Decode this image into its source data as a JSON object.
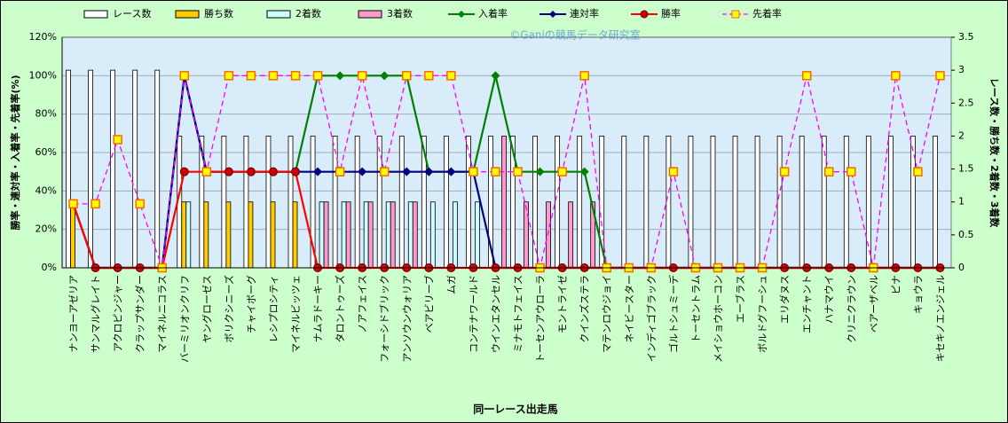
{
  "chart_data": {
    "type": "combo",
    "watermark": "©Ganiの競馬データ研究室",
    "x_label": "同一レース出走馬",
    "y_label": "勝率・連対率・入着率・先着率(%)",
    "y2_label": "レース数・勝ち数・2着数・3着数",
    "legend": "top",
    "grid": true,
    "categories": [
      "ナンヨーアゼリア",
      "サンマルグレイト",
      "アクロピンジャー",
      "クラップサンダー",
      "マイネルニコラス",
      "バーミリオンクリフ",
      "ヤングローゼス",
      "ボリクシニーズ",
      "チャイボーグ",
      "レシプロシティ",
      "マイネルビッツェ",
      "ナムラドーキー",
      "タロントゥーズ",
      "ノアフェイス",
      "フォーシドブリック",
      "アンソウンウォリア",
      "ベアビリーブ",
      "ムガ",
      "コンテナワールド",
      "ウインエタンセル",
      "ミナモトフェイス",
      "トーセンアウローラ",
      "モントライゼ",
      "クインズステラ",
      "マテンロウジョイ",
      "ネイビースター",
      "インディゴブラック",
      "ゴルトシュミーデ",
      "トーセントラム",
      "メイショウホーコン",
      "エーブラス",
      "ボルドグフーシュ",
      "エリダヌス",
      "エンチャント",
      "ハナマウイ",
      "クリニクラウン",
      "ベアーザベル",
      "ピナ",
      "キョウラ",
      "キセキノエンジェル"
    ],
    "ylim": [
      0,
      120
    ],
    "yticks": [
      {
        "value": 0,
        "label": "0%"
      },
      {
        "value": 20,
        "label": "20%"
      },
      {
        "value": 40,
        "label": "40%"
      },
      {
        "value": 60,
        "label": "60%"
      },
      {
        "value": 80,
        "label": "80%"
      },
      {
        "value": 100,
        "label": "100%"
      },
      {
        "value": 120,
        "label": "120%"
      }
    ],
    "y2lim": [
      0,
      3.5
    ],
    "y2ticks": [
      0,
      0.5,
      1,
      1.5,
      2,
      2.5,
      3,
      3.5
    ],
    "series": [
      {
        "name": "レース数",
        "kind": "bar",
        "axis": "y2",
        "color": "#ffffff",
        "values": [
          3,
          3,
          3,
          3,
          3,
          2,
          2,
          2,
          2,
          2,
          2,
          2,
          2,
          2,
          2,
          2,
          2,
          2,
          2,
          2,
          2,
          2,
          2,
          2,
          2,
          2,
          2,
          2,
          2,
          2,
          2,
          2,
          2,
          2,
          2,
          2,
          2,
          2,
          2,
          2
        ]
      },
      {
        "name": "勝ち数",
        "kind": "bar",
        "axis": "y2",
        "color": "#ffcc00",
        "values": [
          1,
          0,
          0,
          0,
          0,
          1,
          1,
          1,
          1,
          1,
          1,
          0,
          0,
          0,
          0,
          0,
          0,
          0,
          0,
          0,
          0,
          0,
          0,
          0,
          0,
          0,
          0,
          0,
          0,
          0,
          0,
          0,
          0,
          0,
          0,
          0,
          0,
          0,
          0,
          0
        ]
      },
      {
        "name": "2着数",
        "kind": "bar",
        "axis": "y2",
        "color": "#ccffff",
        "values": [
          0,
          0,
          0,
          0,
          0,
          1,
          0,
          0,
          0,
          0,
          0,
          1,
          1,
          1,
          1,
          1,
          1,
          1,
          1,
          0,
          0,
          0,
          0,
          0,
          0,
          0,
          0,
          0,
          0,
          0,
          0,
          0,
          0,
          0,
          0,
          0,
          0,
          0,
          0,
          0
        ]
      },
      {
        "name": "3着数",
        "kind": "bar",
        "axis": "y2",
        "color": "#ff99cc",
        "values": [
          0,
          0,
          0,
          0,
          0,
          0,
          0,
          0,
          0,
          0,
          0,
          1,
          1,
          1,
          1,
          1,
          0,
          0,
          0,
          2,
          1,
          1,
          1,
          1,
          0,
          0,
          0,
          0,
          0,
          0,
          0,
          0,
          0,
          0,
          0,
          0,
          0,
          0,
          0,
          0
        ]
      },
      {
        "name": "入着率",
        "kind": "line",
        "marker": "diamond",
        "color": "#008000",
        "values": [
          33.3,
          0,
          0,
          0,
          0,
          100,
          50,
          50,
          50,
          50,
          50,
          100,
          100,
          100,
          100,
          100,
          50,
          50,
          50,
          100,
          50,
          50,
          50,
          50,
          0,
          0,
          0,
          0,
          0,
          0,
          0,
          0,
          0,
          0,
          0,
          0,
          0,
          0,
          0,
          0
        ]
      },
      {
        "name": "連対率",
        "kind": "line",
        "marker": "diamond",
        "color": "#000080",
        "values": [
          33.3,
          0,
          0,
          0,
          0,
          100,
          50,
          50,
          50,
          50,
          50,
          50,
          50,
          50,
          50,
          50,
          50,
          50,
          50,
          0,
          0,
          0,
          0,
          0,
          0,
          0,
          0,
          0,
          0,
          0,
          0,
          0,
          0,
          0,
          0,
          0,
          0,
          0,
          0,
          0
        ]
      },
      {
        "name": "勝率",
        "kind": "line",
        "marker": "circle",
        "color": "#ff0000",
        "values": [
          33.3,
          0,
          0,
          0,
          0,
          50,
          50,
          50,
          50,
          50,
          50,
          0,
          0,
          0,
          0,
          0,
          0,
          0,
          0,
          0,
          0,
          0,
          0,
          0,
          0,
          0,
          0,
          0,
          0,
          0,
          0,
          0,
          0,
          0,
          0,
          0,
          0,
          0,
          0,
          0
        ]
      },
      {
        "name": "先着率",
        "kind": "line",
        "marker": "square",
        "dashed": true,
        "color": "#ff00ff",
        "values": [
          33.3,
          33.3,
          66.7,
          33.3,
          0,
          100,
          50,
          100,
          100,
          100,
          100,
          100,
          50,
          100,
          50,
          100,
          100,
          100,
          50,
          50,
          50,
          0,
          50,
          100,
          0,
          0,
          0,
          50,
          0,
          0,
          0,
          0,
          50,
          100,
          50,
          50,
          0,
          100,
          50,
          100
        ]
      }
    ]
  }
}
